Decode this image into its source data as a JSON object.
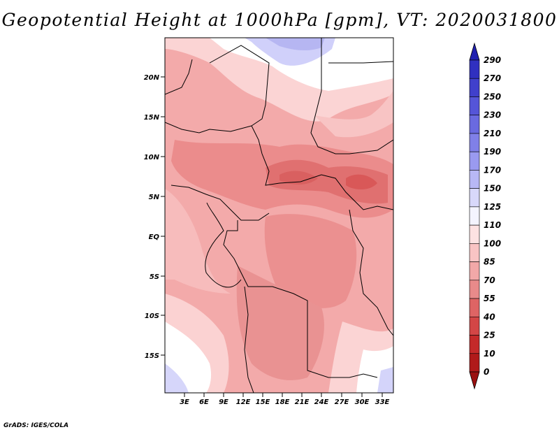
{
  "title": "Geopotential Height at 1000hPa [gpm], VT: 2020031800",
  "footer": "GrADS: IGES/COLA",
  "map": {
    "lat_labels": [
      "20N",
      "15N",
      "10N",
      "5N",
      "EQ",
      "5S",
      "10S",
      "15S"
    ],
    "lon_labels": [
      "3E",
      "6E",
      "9E",
      "12E",
      "15E",
      "18E",
      "21E",
      "24E",
      "27E",
      "30E",
      "33E"
    ]
  },
  "colorbar": {
    "levels": [
      "290",
      "270",
      "250",
      "230",
      "210",
      "190",
      "170",
      "150",
      "125",
      "110",
      "100",
      "85",
      "70",
      "55",
      "40",
      "25",
      "10",
      "0"
    ],
    "colors": [
      "#2020b0",
      "#3030c0",
      "#4040cc",
      "#5555d8",
      "#6a6ae0",
      "#8080e8",
      "#9a9af0",
      "#b8b8f5",
      "#d8d8fa",
      "#f4f4fe",
      "#fde2e2",
      "#f9c4c4",
      "#f2a8a8",
      "#e88a8a",
      "#de6464",
      "#d34646",
      "#c42a2a",
      "#b01a1a",
      "#9a1010"
    ]
  }
}
